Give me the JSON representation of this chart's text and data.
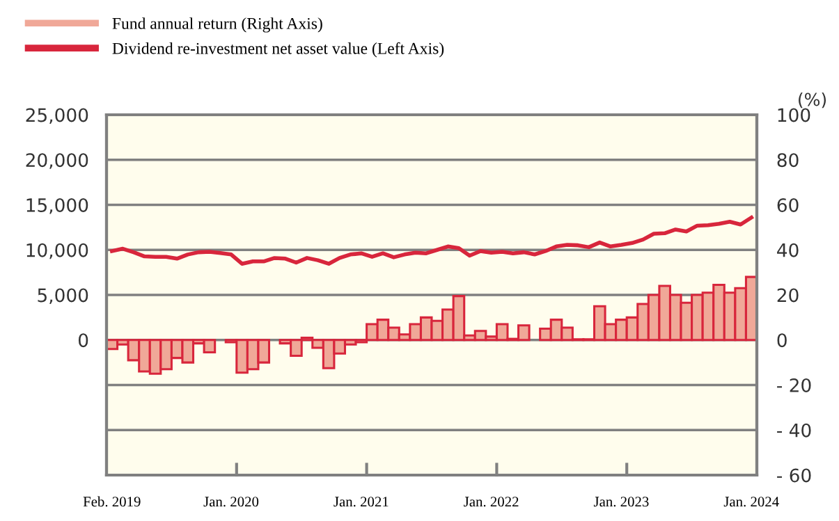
{
  "chart_data": {
    "type": "bar",
    "categories": [
      "Feb. 2019",
      null,
      null,
      null,
      null,
      null,
      null,
      null,
      null,
      null,
      null,
      "Jan. 2020",
      null,
      null,
      null,
      null,
      null,
      null,
      null,
      null,
      null,
      null,
      null,
      "Jan. 2021",
      null,
      null,
      null,
      null,
      null,
      null,
      null,
      null,
      null,
      null,
      null,
      "Jan. 2022",
      null,
      null,
      null,
      null,
      null,
      null,
      null,
      null,
      null,
      null,
      null,
      "Jan. 2023",
      null,
      null,
      null,
      null,
      null,
      null,
      null,
      null,
      null,
      null,
      null,
      "Jan. 2024"
    ],
    "series": [
      {
        "name": "Fund annual return (Right Axis)",
        "axis": "y2",
        "color": "#f0a898",
        "values": [
          -4,
          -2,
          -9,
          -14,
          -15,
          -13,
          -8,
          -10,
          -1.5,
          -5.5,
          null,
          -1,
          -14.5,
          -13,
          -10,
          null,
          -1.5,
          -7,
          1,
          -3.5,
          -12.5,
          -6,
          -2,
          -1,
          7,
          9,
          5.5,
          2.5,
          7,
          10,
          8.5,
          13.5,
          19.5,
          2,
          4,
          1.5,
          7,
          0.5,
          6.5,
          null,
          5,
          9,
          5.5,
          0.3,
          0.3,
          15,
          7,
          9,
          10,
          16,
          20,
          24,
          20,
          16.5,
          20,
          21,
          24.5,
          21,
          23,
          28
        ]
      },
      {
        "name": "Dividend re-investment net asset value (Left Axis)",
        "type": "line",
        "color": "#d8263c",
        "values": [
          9870,
          10130,
          9740,
          9280,
          9230,
          9230,
          9030,
          9490,
          9740,
          9790,
          9660,
          9490,
          8460,
          8720,
          8720,
          9100,
          9030,
          8590,
          9100,
          8850,
          8460,
          9100,
          9490,
          9620,
          9230,
          9620,
          9180,
          9490,
          9690,
          9620,
          10000,
          10380,
          10200,
          9360,
          9870,
          9690,
          9790,
          9620,
          9740,
          9500,
          9870,
          10380,
          10560,
          10510,
          10300,
          10820,
          10380,
          10560,
          10770,
          11150,
          11790,
          11850,
          12260,
          12050,
          12690,
          12740,
          12900,
          13130,
          12820,
          13590
        ]
      }
    ],
    "ylim": [
      -15000,
      25000
    ],
    "yticks": [
      {
        "value": 0,
        "label": "0"
      },
      {
        "value": 5000,
        "label": "5,000"
      },
      {
        "value": 10000,
        "label": "10,000"
      },
      {
        "value": 15000,
        "label": "15,000"
      },
      {
        "value": 20000,
        "label": "20,000"
      },
      {
        "value": 25000,
        "label": "25,000"
      }
    ],
    "y2label": "(%)",
    "y2lim": [
      -60,
      100
    ],
    "y2ticks": [
      {
        "value": -60,
        "label": "- 60"
      },
      {
        "value": -40,
        "label": "- 40"
      },
      {
        "value": -20,
        "label": "- 20"
      },
      0,
      20,
      40,
      60,
      80,
      100
    ],
    "grid": "y",
    "legend": "top left",
    "line_style": "solid",
    "marker": "none"
  }
}
